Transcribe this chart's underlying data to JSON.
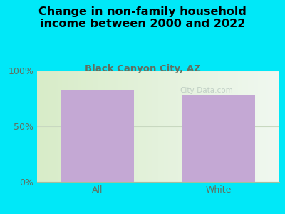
{
  "title": "Change in non-family household\nincome between 2000 and 2022",
  "subtitle": "Black Canyon City, AZ",
  "categories": [
    "All",
    "White"
  ],
  "values": [
    83,
    78
  ],
  "bar_color": "#c4a8d4",
  "background_color": "#00e8f8",
  "plot_bg_color_left": "#d8ecc8",
  "plot_bg_color_right": "#f0f8f0",
  "yticks": [
    0,
    50,
    100
  ],
  "ylim": [
    0,
    100
  ],
  "title_fontsize": 11.5,
  "subtitle_fontsize": 9.5,
  "subtitle_color": "#607060",
  "title_color": "#000000",
  "tick_label_color": "#607060",
  "xticklabel_color": "#607060",
  "watermark": "City-Data.com"
}
